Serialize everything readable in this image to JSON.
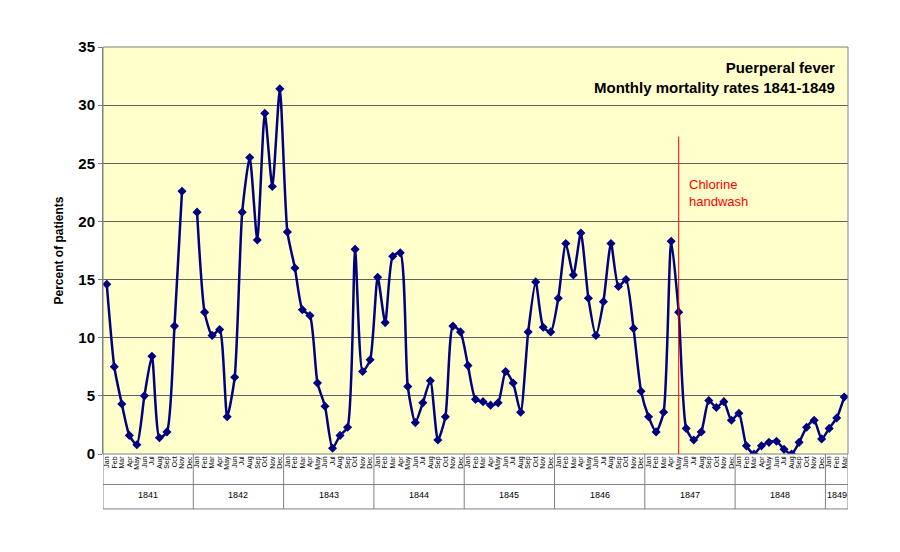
{
  "chart_data": {
    "type": "line",
    "title": "Puerperal fever",
    "subtitle": "Monthly mortality rates 1841-1849",
    "y_label": "Percent of patients",
    "categories": [
      "Jan",
      "Feb",
      "Mar",
      "Apr",
      "May",
      "Jun",
      "Jul",
      "Aug",
      "Sep",
      "Oct",
      "Nov",
      "Dec",
      "Jan",
      "Feb",
      "Mar",
      "Apr",
      "May",
      "Jun",
      "Jul",
      "Aug",
      "Sep",
      "Oct",
      "Nov",
      "Dec",
      "Jan",
      "Feb",
      "Mar",
      "Apr",
      "May",
      "Jun",
      "Jul",
      "Aug",
      "Sep",
      "Oct",
      "Nov",
      "Dec",
      "Jan",
      "Feb",
      "Mar",
      "Apr",
      "May",
      "Jun",
      "Jul",
      "Aug",
      "Sep",
      "Oct",
      "Nov",
      "Dec",
      "Jan",
      "Feb",
      "Mar",
      "Apr",
      "May",
      "Jun",
      "Jul",
      "Aug",
      "Sep",
      "Oct",
      "Nov",
      "Dec",
      "Jan",
      "Feb",
      "Mar",
      "Apr",
      "May",
      "Jun",
      "Jul",
      "Aug",
      "Sep",
      "Oct",
      "Nov",
      "Dec",
      "Jan",
      "Feb",
      "Mar",
      "Apr",
      "May",
      "Jun",
      "Jul",
      "Aug",
      "Sep",
      "Oct",
      "Nov",
      "Dec",
      "Jan",
      "Feb",
      "Mar",
      "Apr",
      "May",
      "Jun",
      "Jul",
      "Aug",
      "Sep",
      "Oct",
      "Nov",
      "Dec",
      "Jan",
      "Feb",
      "Mar"
    ],
    "years": [
      "1841",
      "1841",
      "1841",
      "1841",
      "1841",
      "1841",
      "1841",
      "1841",
      "1841",
      "1841",
      "1841",
      "1841",
      "1842",
      "1842",
      "1842",
      "1842",
      "1842",
      "1842",
      "1842",
      "1842",
      "1842",
      "1842",
      "1842",
      "1842",
      "1843",
      "1843",
      "1843",
      "1843",
      "1843",
      "1843",
      "1843",
      "1843",
      "1843",
      "1843",
      "1843",
      "1843",
      "1844",
      "1844",
      "1844",
      "1844",
      "1844",
      "1844",
      "1844",
      "1844",
      "1844",
      "1844",
      "1844",
      "1844",
      "1845",
      "1845",
      "1845",
      "1845",
      "1845",
      "1845",
      "1845",
      "1845",
      "1845",
      "1845",
      "1845",
      "1845",
      "1846",
      "1846",
      "1846",
      "1846",
      "1846",
      "1846",
      "1846",
      "1846",
      "1846",
      "1846",
      "1846",
      "1846",
      "1847",
      "1847",
      "1847",
      "1847",
      "1847",
      "1847",
      "1847",
      "1847",
      "1847",
      "1847",
      "1847",
      "1847",
      "1848",
      "1848",
      "1848",
      "1848",
      "1848",
      "1848",
      "1848",
      "1848",
      "1848",
      "1848",
      "1848",
      "1848",
      "1849",
      "1849",
      "1849"
    ],
    "values": [
      14.6,
      7.5,
      4.3,
      1.6,
      0.8,
      5.0,
      8.4,
      1.4,
      1.9,
      11.0,
      22.6,
      null,
      20.8,
      12.2,
      10.2,
      10.7,
      3.2,
      6.6,
      20.8,
      25.5,
      18.4,
      29.3,
      23.0,
      31.4,
      19.1,
      16.0,
      12.4,
      11.9,
      6.1,
      4.1,
      0.5,
      1.6,
      2.3,
      17.6,
      7.1,
      8.1,
      15.2,
      11.3,
      17.0,
      17.3,
      5.8,
      2.7,
      4.4,
      6.3,
      1.2,
      3.2,
      11.0,
      10.5,
      7.6,
      4.7,
      4.5,
      4.2,
      4.4,
      7.1,
      6.1,
      3.6,
      10.5,
      14.8,
      10.9,
      10.5,
      13.4,
      18.1,
      15.4,
      19.0,
      13.4,
      10.2,
      13.1,
      18.1,
      14.4,
      15.0,
      10.8,
      5.4,
      3.2,
      1.9,
      3.6,
      18.3,
      12.2,
      2.2,
      1.2,
      1.9,
      4.6,
      4.0,
      4.5,
      2.9,
      3.5,
      0.7,
      0,
      0.7,
      1.0,
      1.1,
      0.4,
      0,
      1.0,
      2.3,
      2.9,
      1.3,
      2.2,
      3.1,
      4.9
    ],
    "color": "#000080",
    "marker": "diamond",
    "ylim": [
      0,
      35
    ],
    "yticks": [
      0,
      5,
      10,
      15,
      20,
      25,
      30,
      35
    ],
    "grid": true,
    "annotations": [
      {
        "text": [
          "Chlorine",
          "handwash"
        ],
        "year": "1847",
        "month": "May",
        "y": 27.3,
        "color": "#ff0000"
      }
    ]
  }
}
